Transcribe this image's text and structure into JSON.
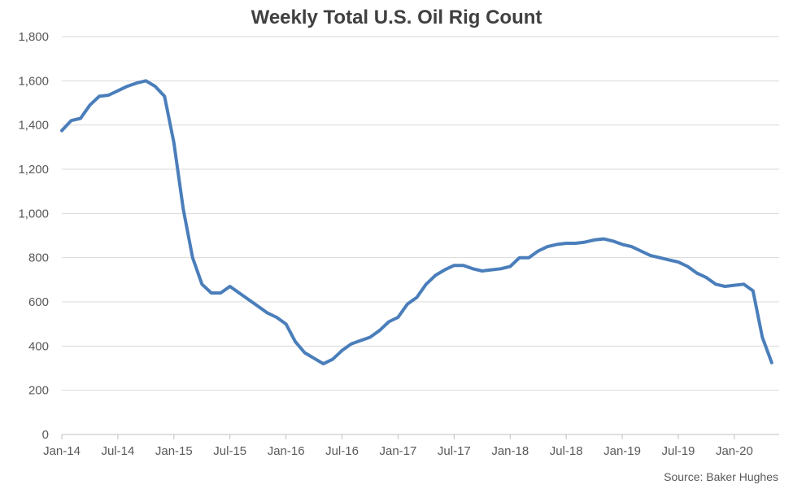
{
  "chart_data": {
    "type": "line",
    "title": "Weekly Total U.S. Oil Rig Count",
    "xlabel": "",
    "ylabel": "",
    "ylim": [
      0,
      1800
    ],
    "y_ticks": [
      0,
      200,
      400,
      600,
      800,
      1000,
      1200,
      1400,
      1600,
      1800
    ],
    "y_tick_labels": [
      "0",
      "200",
      "400",
      "600",
      "800",
      "1,000",
      "1,200",
      "1,400",
      "1,600",
      "1,800"
    ],
    "x_tick_labels": [
      "Jan-14",
      "Jul-14",
      "Jan-15",
      "Jul-15",
      "Jan-16",
      "Jul-16",
      "Jan-17",
      "Jul-17",
      "Jan-18",
      "Jul-18",
      "Jan-19",
      "Jul-19",
      "Jan-20"
    ],
    "x_tick_dates": [
      "2014-01",
      "2014-07",
      "2015-01",
      "2015-07",
      "2016-01",
      "2016-07",
      "2017-01",
      "2017-07",
      "2018-01",
      "2018-07",
      "2019-01",
      "2019-07",
      "2020-01"
    ],
    "grid": "horizontal",
    "legend": "none",
    "line_color": "#4a7ebb",
    "source": "Source: Baker Hughes",
    "series": [
      {
        "x": [
          "2014-01",
          "2014-02",
          "2014-03",
          "2014-04",
          "2014-05",
          "2014-06",
          "2014-07",
          "2014-08",
          "2014-09",
          "2014-10",
          "2014-11",
          "2014-12",
          "2015-01",
          "2015-02",
          "2015-03",
          "2015-04",
          "2015-05",
          "2015-06",
          "2015-07",
          "2015-08",
          "2015-09",
          "2015-10",
          "2015-11",
          "2015-12",
          "2016-01",
          "2016-02",
          "2016-03",
          "2016-04",
          "2016-05",
          "2016-06",
          "2016-07",
          "2016-08",
          "2016-09",
          "2016-10",
          "2016-11",
          "2016-12",
          "2017-01",
          "2017-02",
          "2017-03",
          "2017-04",
          "2017-05",
          "2017-06",
          "2017-07",
          "2017-08",
          "2017-09",
          "2017-10",
          "2017-11",
          "2017-12",
          "2018-01",
          "2018-02",
          "2018-03",
          "2018-04",
          "2018-05",
          "2018-06",
          "2018-07",
          "2018-08",
          "2018-09",
          "2018-10",
          "2018-11",
          "2018-12",
          "2019-01",
          "2019-02",
          "2019-03",
          "2019-04",
          "2019-05",
          "2019-06",
          "2019-07",
          "2019-08",
          "2019-09",
          "2019-10",
          "2019-11",
          "2019-12",
          "2020-01",
          "2020-02",
          "2020-03",
          "2020-04",
          "2020-05"
        ],
        "values": [
          1375,
          1420,
          1430,
          1490,
          1530,
          1535,
          1555,
          1575,
          1590,
          1600,
          1575,
          1530,
          1320,
          1020,
          800,
          680,
          640,
          640,
          670,
          640,
          610,
          580,
          550,
          530,
          500,
          420,
          370,
          345,
          320,
          340,
          380,
          410,
          425,
          440,
          470,
          510,
          530,
          590,
          620,
          680,
          720,
          745,
          765,
          765,
          750,
          740,
          745,
          750,
          760,
          800,
          800,
          830,
          850,
          860,
          865,
          865,
          870,
          880,
          885,
          875,
          860,
          850,
          830,
          810,
          800,
          790,
          780,
          760,
          730,
          710,
          680,
          670,
          675,
          680,
          650,
          440,
          325
        ]
      }
    ]
  }
}
